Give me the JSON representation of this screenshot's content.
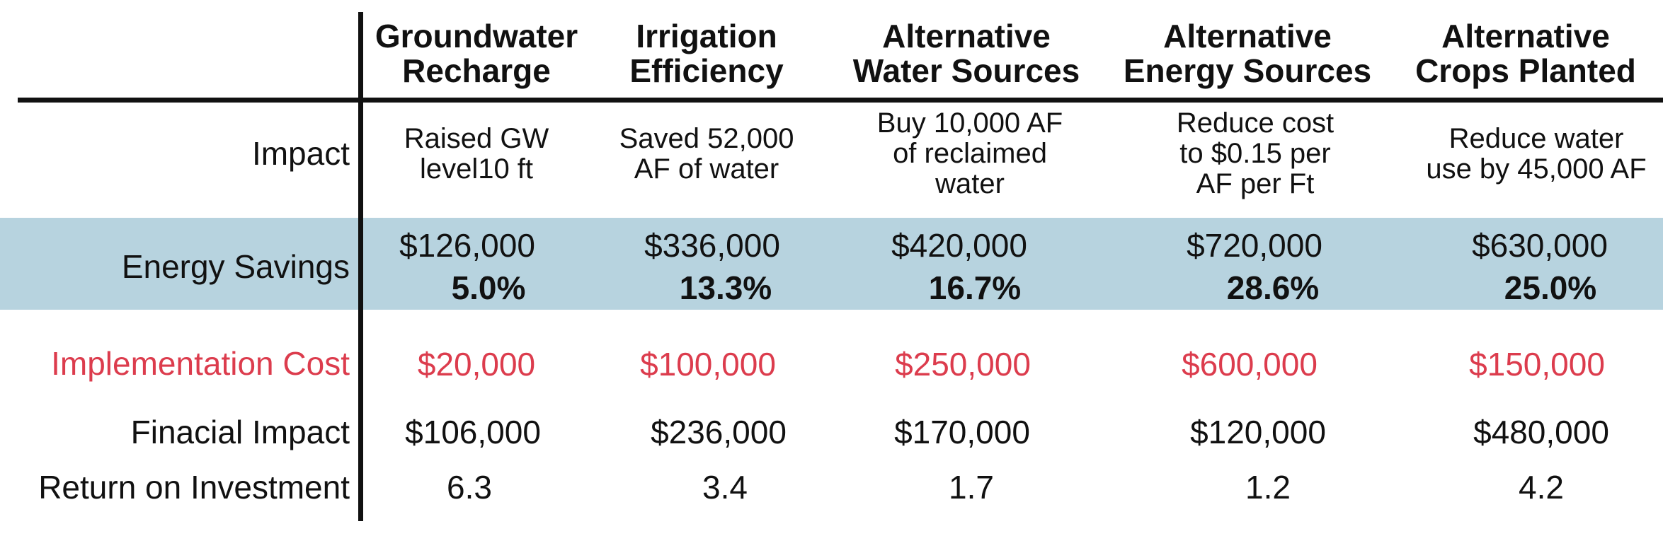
{
  "columns": [
    {
      "header": "Groundwater\nRecharge",
      "impact": "Raised GW\nlevel10 ft",
      "energy_savings": "$126,000",
      "energy_savings_pct": "5.0%",
      "implementation_cost": "$20,000",
      "financial_impact": "$106,000",
      "roi": "6.3"
    },
    {
      "header": "Irrigation\nEfficiency",
      "impact": "Saved 52,000\nAF of water",
      "energy_savings": "$336,000",
      "energy_savings_pct": "13.3%",
      "implementation_cost": "$100,000",
      "financial_impact": "$236,000",
      "roi": "3.4"
    },
    {
      "header": "Alternative\nWater Sources",
      "impact": "Buy 10,000 AF\nof reclaimed\nwater",
      "energy_savings": "$420,000",
      "energy_savings_pct": "16.7%",
      "implementation_cost": "$250,000",
      "financial_impact": "$170,000",
      "roi": "1.7"
    },
    {
      "header": "Alternative\nEnergy Sources",
      "impact": "Reduce cost\nto $0.15 per\nAF per Ft",
      "energy_savings": "$720,000",
      "energy_savings_pct": "28.6%",
      "implementation_cost": "$600,000",
      "financial_impact": "$120,000",
      "roi": "1.2"
    },
    {
      "header": "Alternative\nCrops Planted",
      "impact": "Reduce water\nuse by 45,000 AF",
      "energy_savings": "$630,000",
      "energy_savings_pct": "25.0%",
      "implementation_cost": "$150,000",
      "financial_impact": "$480,000",
      "roi": "4.2"
    }
  ],
  "row_labels": {
    "impact": "Impact",
    "energy_savings": "Energy Savings",
    "implementation_cost": "Implementation Cost",
    "financial_impact": "Finacial Impact",
    "roi": "Return on Investment"
  },
  "colors": {
    "highlight_band": "#b7d3df",
    "cost_red": "#dc3c4d",
    "text": "#111111"
  }
}
